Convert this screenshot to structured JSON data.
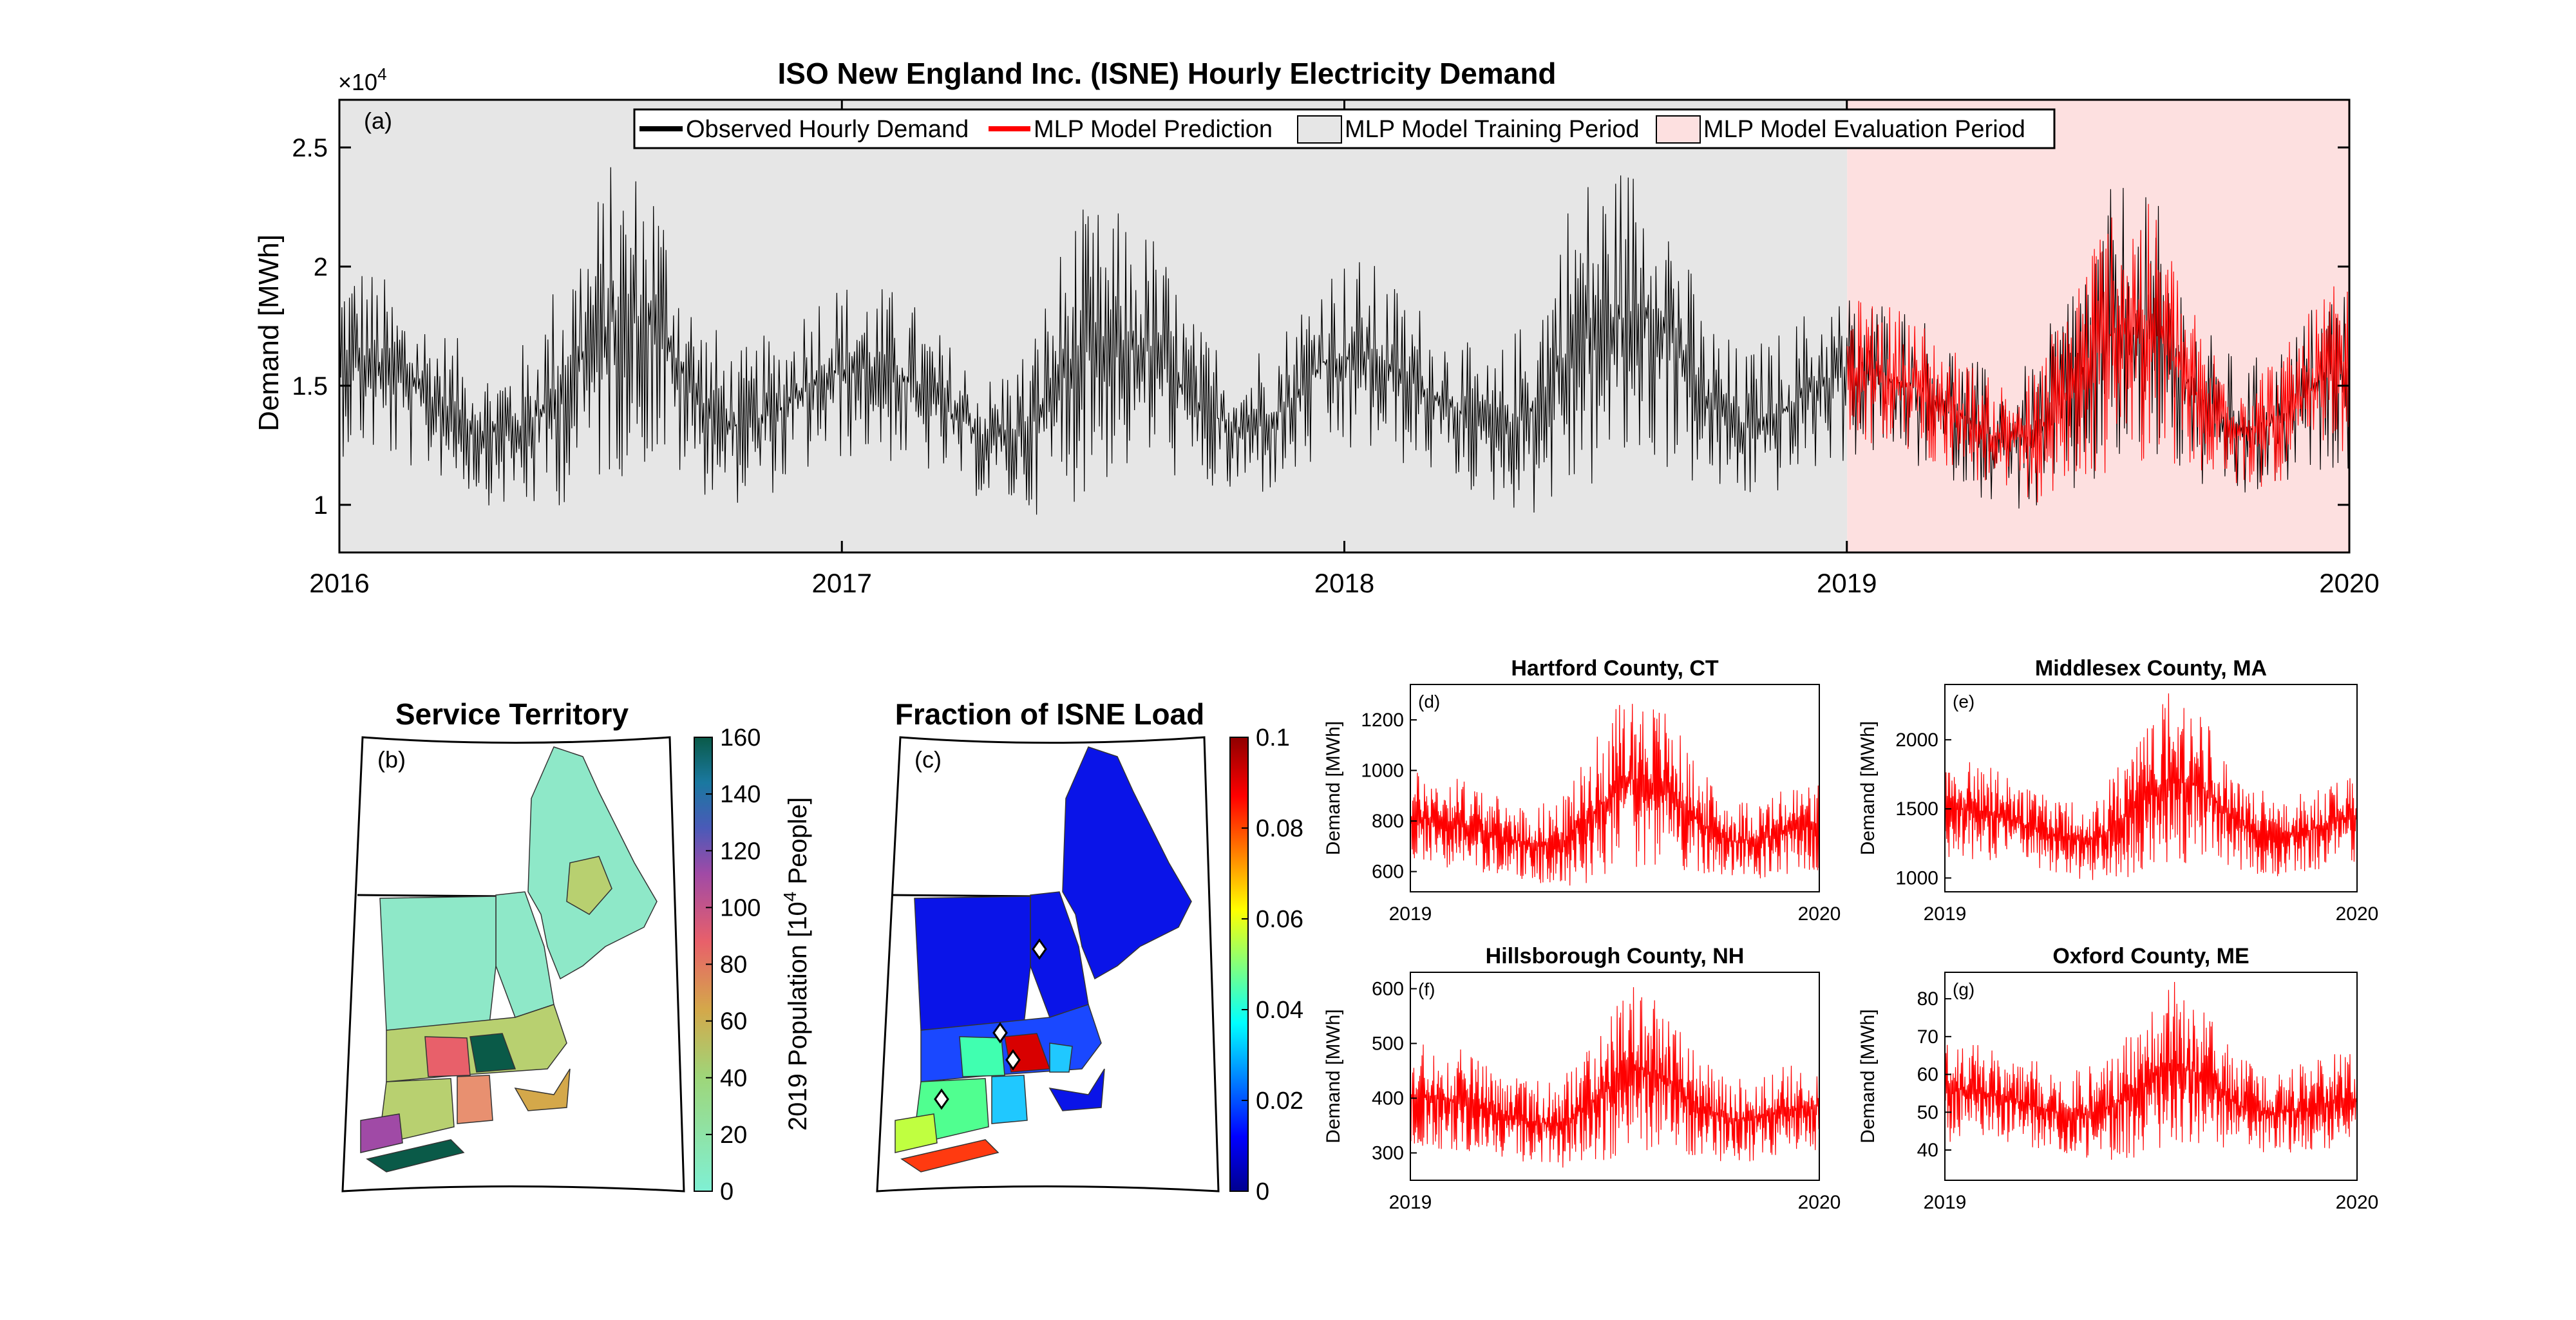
{
  "panels": {
    "a": {
      "label": "(a)",
      "title": "ISO New England Inc. (ISNE) Hourly Electricity Demand",
      "ylabel": "Demand [MWh]",
      "exponent_base": "×10",
      "exponent_power": "4",
      "legend": {
        "observed": "Observed Hourly Demand",
        "prediction": "MLP Model Prediction",
        "training": "MLP Model Training Period",
        "evaluation": "MLP Model Evaluation Period"
      }
    },
    "b": {
      "label": "(b)",
      "title": "Service Territory",
      "colorbar_label_prefix": "2019 Population [10",
      "colorbar_label_power": "4",
      "colorbar_label_suffix": " People]"
    },
    "c": {
      "label": "(c)",
      "title": "Fraction of ISNE Load"
    },
    "d": {
      "label": "(d)",
      "title": "Hartford County, CT",
      "ylabel": "Demand [MWh]"
    },
    "e": {
      "label": "(e)",
      "title": "Middlesex County, MA",
      "ylabel": "Demand [MWh]"
    },
    "f": {
      "label": "(f)",
      "title": "Hillsborough County, NH",
      "ylabel": "Demand [MWh]"
    },
    "g": {
      "label": "(g)",
      "title": "Oxford County, ME",
      "ylabel": "Demand [MWh]"
    }
  },
  "colors": {
    "observed": "#000000",
    "prediction": "#ff0000",
    "training_bg": "#e6e6e6",
    "evaluation_bg": "#fde0e0"
  },
  "chart_data": [
    {
      "id": "a",
      "type": "line",
      "x_range": [
        "2016-01-01",
        "2020-01-01"
      ],
      "x_ticks": [
        "2016",
        "2017",
        "2018",
        "2019",
        "2020"
      ],
      "ylim": [
        8000,
        27000
      ],
      "y_ticks": [
        {
          "value": 10000,
          "label": "1"
        },
        {
          "value": 15000,
          "label": "1.5"
        },
        {
          "value": 20000,
          "label": "2"
        },
        {
          "value": 25000,
          "label": "2.5"
        }
      ],
      "training_period": [
        "2016-01-01",
        "2019-01-01"
      ],
      "evaluation_period": [
        "2019-01-01",
        "2020-01-01"
      ],
      "series": [
        {
          "name": "Observed Hourly Demand",
          "monthly_min": [
            12000,
            11500,
            11000,
            10000,
            9500,
            10000,
            11000,
            11500,
            10500,
            10000,
            10500,
            11500,
            12000,
            11500,
            11000,
            10000,
            9500,
            10000,
            11000,
            11500,
            10500,
            10000,
            10500,
            11500,
            12000,
            11500,
            11000,
            10000,
            9500,
            10000,
            11000,
            11500,
            10500,
            10000,
            10500,
            11500,
            12000,
            11500,
            11000,
            10000,
            9500,
            10000,
            11000,
            11500,
            10500,
            10000,
            10500,
            11500
          ],
          "monthly_max": [
            20500,
            19000,
            17500,
            16000,
            17000,
            21000,
            24500,
            24500,
            18500,
            16500,
            17500,
            19500,
            19500,
            19000,
            17000,
            15500,
            17000,
            22500,
            22500,
            21500,
            17500,
            16500,
            17500,
            20500,
            20500,
            19000,
            17500,
            16000,
            18500,
            24000,
            24500,
            25000,
            18500,
            16500,
            17500,
            19000,
            19000,
            18500,
            17000,
            15500,
            16000,
            20500,
            24000,
            22500,
            17500,
            16000,
            17000,
            19500
          ]
        },
        {
          "name": "MLP Model Prediction",
          "start": "2019-01-01",
          "end": "2020-01-01"
        }
      ]
    },
    {
      "id": "b",
      "type": "heatmap",
      "colorbar_ticks": [
        "0",
        "20",
        "40",
        "60",
        "80",
        "100",
        "120",
        "140",
        "160"
      ],
      "colorbar_range": [
        0,
        160
      ]
    },
    {
      "id": "c",
      "type": "heatmap",
      "colorbar_ticks": [
        "0",
        "0.02",
        "0.04",
        "0.06",
        "0.08",
        "0.1"
      ],
      "colorbar_range": [
        0,
        0.1
      ]
    },
    {
      "id": "d",
      "type": "line",
      "series_name": "MLP Model Prediction",
      "x_ticks": [
        "2019",
        "2020"
      ],
      "ylim": [
        520,
        1340
      ],
      "y_ticks": [
        "600",
        "800",
        "1000",
        "1200"
      ],
      "monthly_min": [
        620,
        600,
        590,
        560,
        540,
        560,
        600,
        620,
        580,
        560,
        570,
        600
      ],
      "monthly_max": [
        1000,
        980,
        900,
        860,
        900,
        1150,
        1330,
        1250,
        1000,
        880,
        900,
        960
      ]
    },
    {
      "id": "e",
      "type": "line",
      "series_name": "MLP Model Prediction",
      "x_ticks": [
        "2019",
        "2020"
      ],
      "ylim": [
        900,
        2400
      ],
      "y_ticks": [
        "1000",
        "1500",
        "2000"
      ],
      "monthly_min": [
        1150,
        1100,
        1080,
        1000,
        980,
        1000,
        1080,
        1120,
        1050,
        1000,
        1020,
        1100
      ],
      "monthly_max": [
        1850,
        1800,
        1650,
        1550,
        1600,
        2000,
        2360,
        2200,
        1750,
        1600,
        1650,
        1750
      ]
    },
    {
      "id": "f",
      "type": "line",
      "series_name": "MLP Model Prediction",
      "x_ticks": [
        "2019",
        "2020"
      ],
      "ylim": [
        250,
        630
      ],
      "y_ticks": [
        "300",
        "400",
        "500",
        "600"
      ],
      "monthly_min": [
        310,
        300,
        295,
        280,
        270,
        280,
        300,
        310,
        290,
        280,
        285,
        300
      ],
      "monthly_max": [
        500,
        490,
        450,
        430,
        440,
        520,
        620,
        560,
        470,
        440,
        450,
        470
      ]
    },
    {
      "id": "g",
      "type": "line",
      "series_name": "MLP Model Prediction",
      "x_ticks": [
        "2019",
        "2020"
      ],
      "ylim": [
        32,
        87
      ],
      "y_ticks": [
        "40",
        "50",
        "60",
        "70",
        "80"
      ],
      "monthly_min": [
        42,
        41,
        40,
        38,
        37,
        38,
        40,
        42,
        39,
        38,
        39,
        41
      ],
      "monthly_max": [
        70,
        68,
        64,
        61,
        63,
        72,
        86,
        78,
        65,
        61,
        63,
        66
      ]
    }
  ]
}
